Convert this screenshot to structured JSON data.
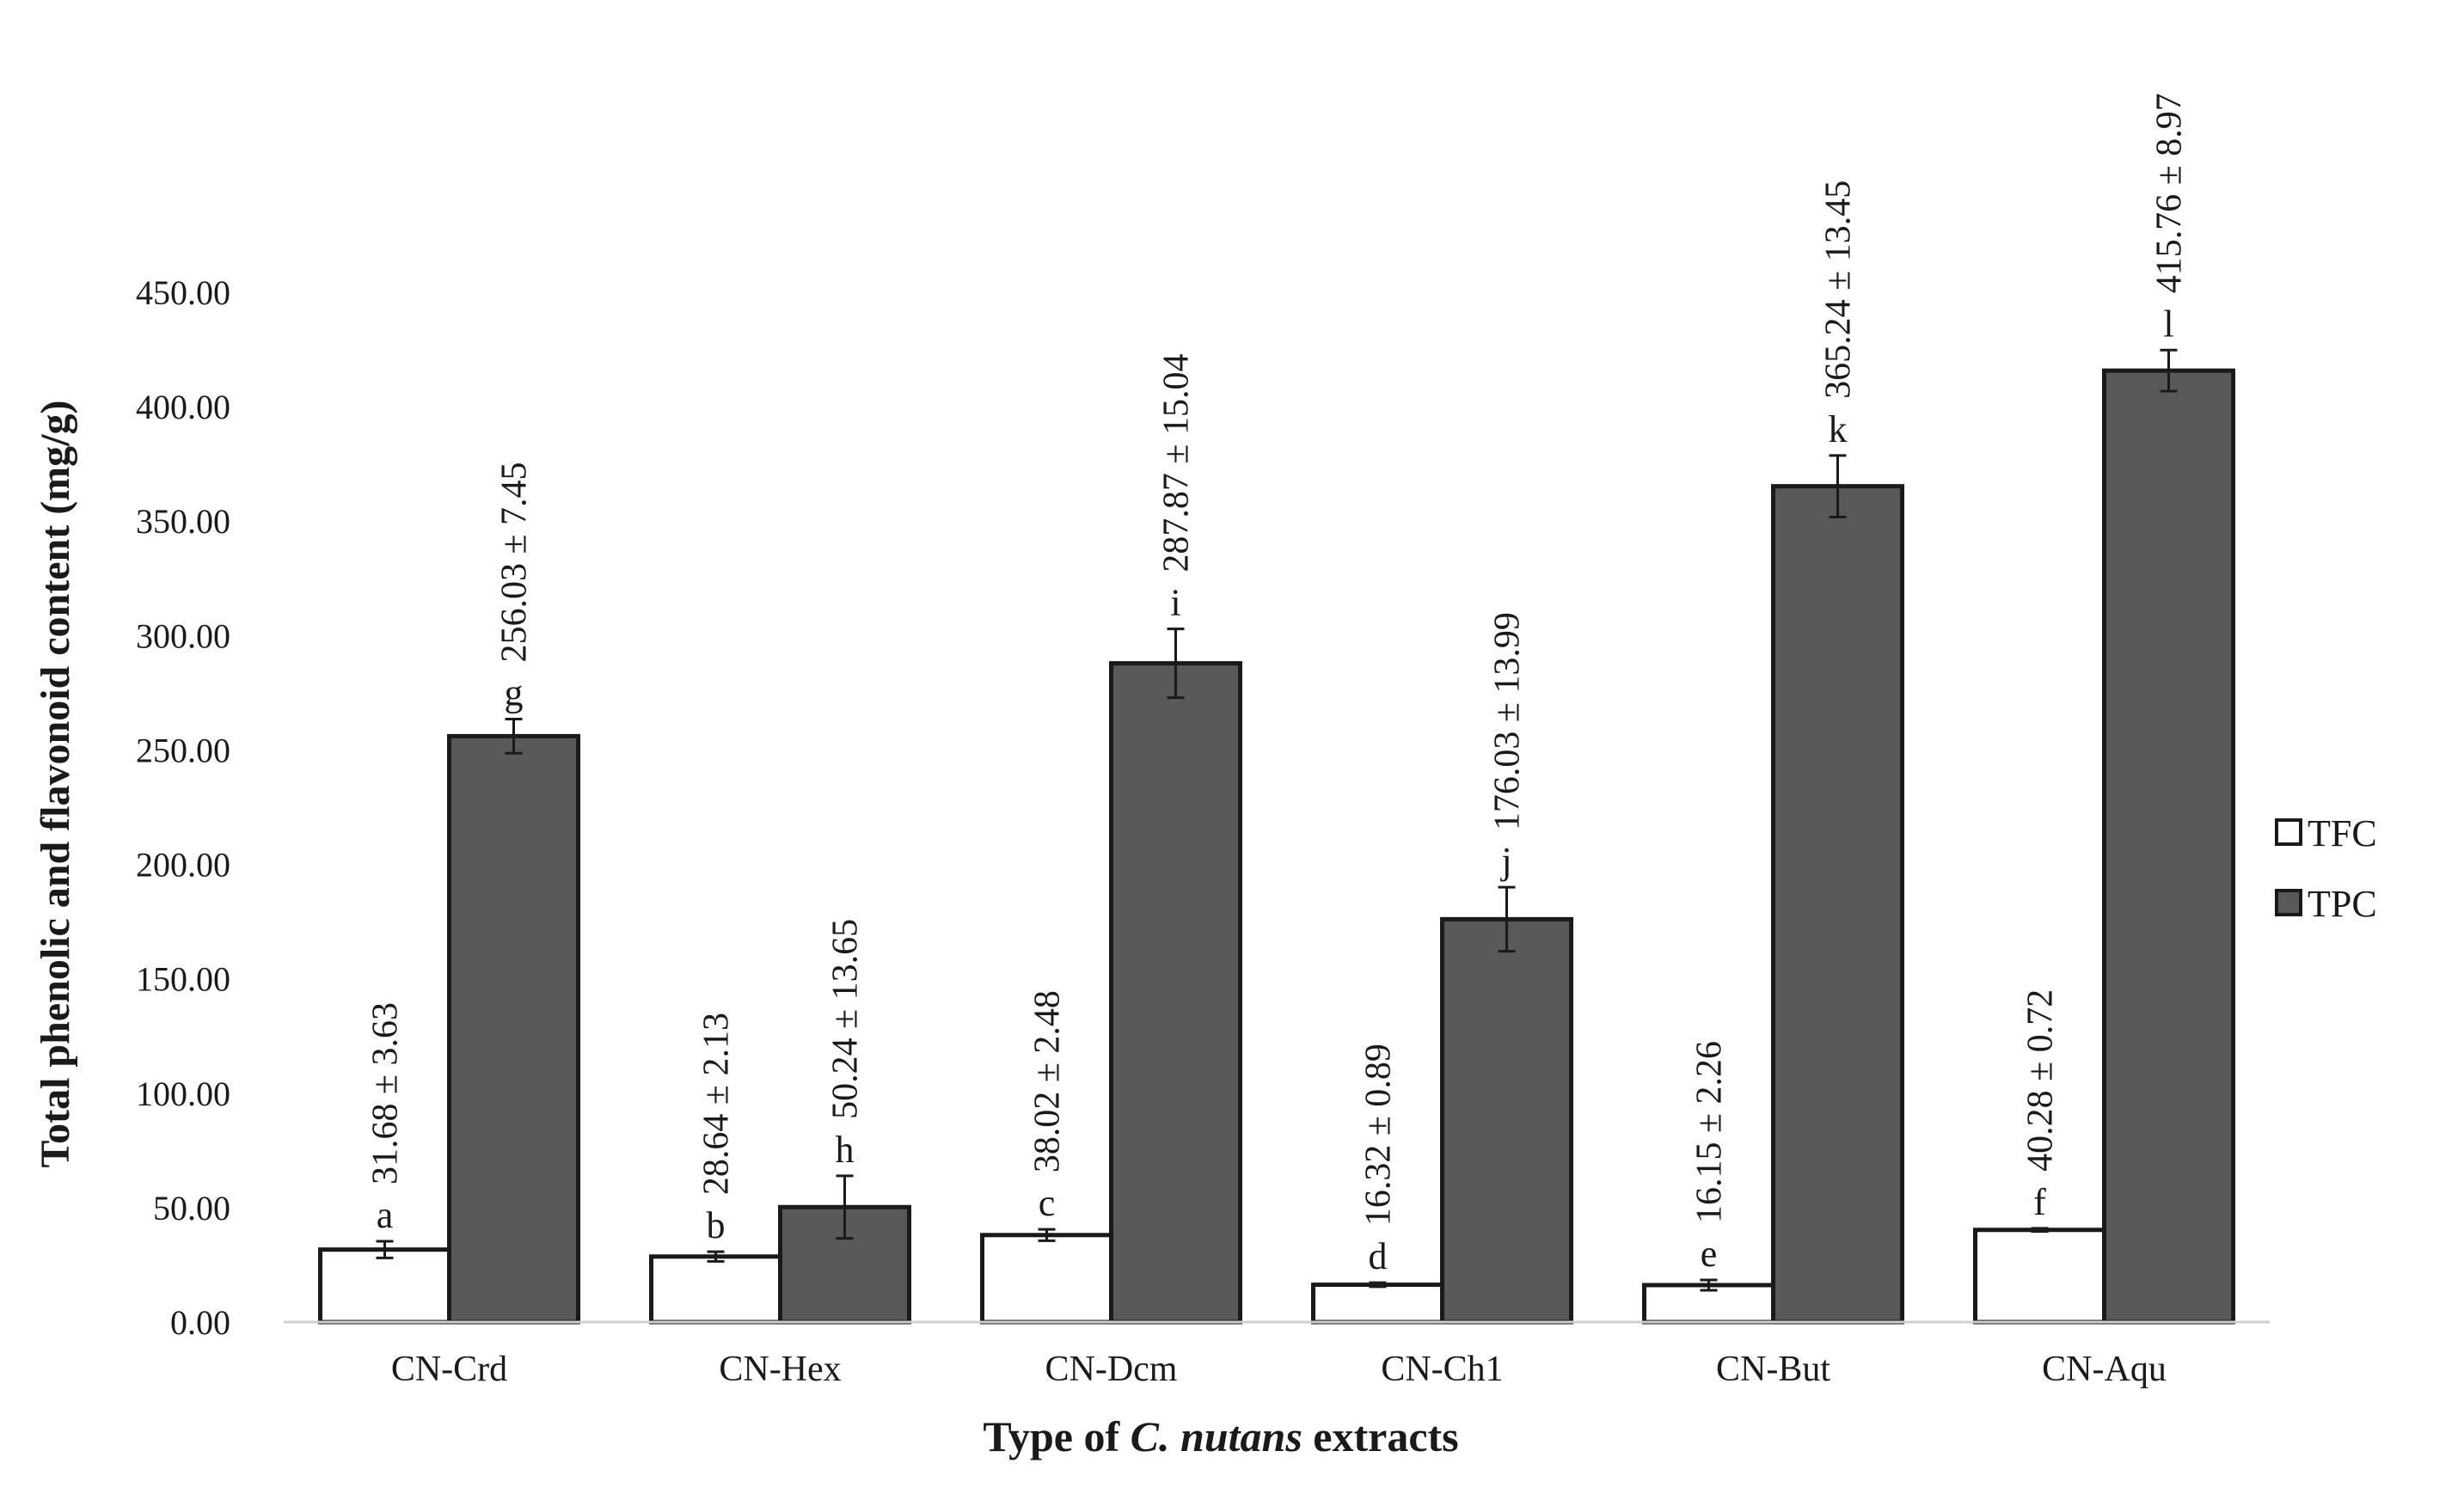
{
  "chart_data": {
    "type": "bar",
    "title": "",
    "xlabel": {
      "prefix": "Type of ",
      "italic": "C. nutans",
      "suffix": " extracts"
    },
    "ylabel": "Total phenolic and flavonoid content (mg/g)",
    "ylim": [
      0,
      450
    ],
    "yticks": [
      0,
      50,
      100,
      150,
      200,
      250,
      300,
      350,
      400,
      450
    ],
    "ytick_labels": [
      "0.00",
      "50.00",
      "100.00",
      "150.00",
      "200.00",
      "250.00",
      "300.00",
      "350.00",
      "400.00",
      "450.00"
    ],
    "categories": [
      "CN-Crd",
      "CN-Hex",
      "CN-Dcm",
      "CN-Ch1",
      "CN-But",
      "CN-Aqu"
    ],
    "series": [
      {
        "name": "TFC",
        "color": "#ffffff",
        "values": [
          31.68,
          28.64,
          38.02,
          16.32,
          16.15,
          40.28
        ],
        "errors": [
          3.63,
          2.13,
          2.48,
          0.89,
          2.26,
          0.72
        ],
        "labels": [
          "31.68 ± 3.63",
          "28.64 ± 2.13",
          "38.02 ± 2.48",
          "16.32 ± 0.89",
          "16.15 ± 2.26",
          "40.28 ± 0.72"
        ],
        "letters": [
          "a",
          "b",
          "c",
          "d",
          "e",
          "f"
        ]
      },
      {
        "name": "TPC",
        "color": "#595959",
        "values": [
          256.03,
          50.24,
          287.87,
          176.03,
          365.24,
          415.76
        ],
        "errors": [
          7.45,
          13.65,
          15.04,
          13.99,
          13.45,
          8.97
        ],
        "labels": [
          "256.03 ± 7.45",
          "50.24 ± 13.65",
          "287.87 ± 15.04",
          "176.03 ± 13.99",
          "365.24 ± 13.45",
          "415.76 ± 8.97"
        ],
        "letters": [
          "g",
          "h",
          "i",
          "j",
          "k",
          "l"
        ]
      }
    ],
    "legend": {
      "position": "right",
      "entries": [
        "TFC",
        "TPC"
      ]
    },
    "grid": false
  }
}
